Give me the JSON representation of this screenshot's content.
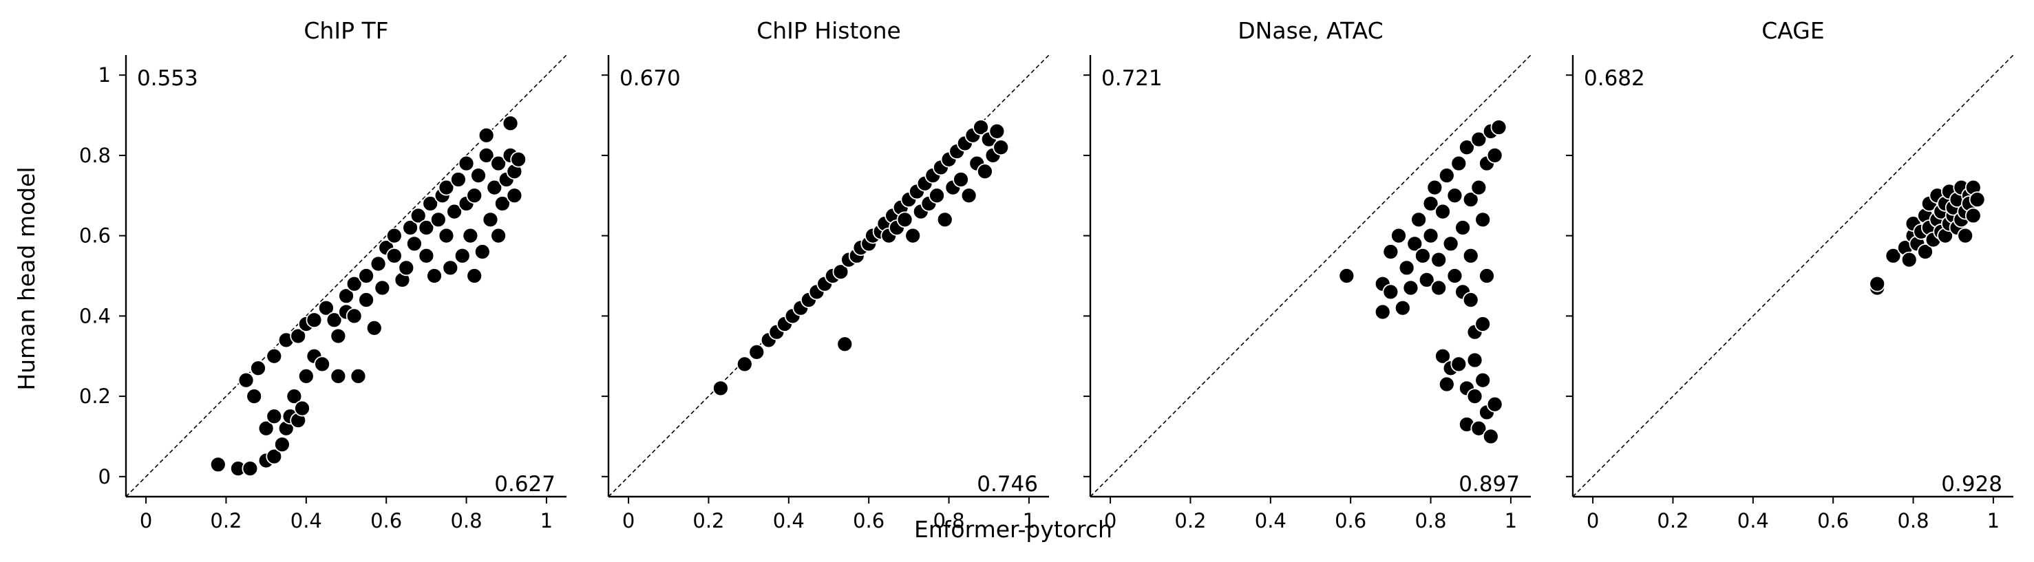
{
  "figure": {
    "xlabel": "Enformer-pytorch",
    "ylabel": "Human head model"
  },
  "chart_data": [
    {
      "type": "scatter",
      "title": "ChIP TF",
      "xlim": [
        -0.05,
        1.05
      ],
      "ylim": [
        -0.05,
        1.05
      ],
      "xticks": [
        "0",
        "0.2",
        "0.4",
        "0.6",
        "0.8",
        "1"
      ],
      "yticks": [
        "0",
        "0.2",
        "0.4",
        "0.6",
        "0.8",
        "1"
      ],
      "reference_line": "y = x",
      "annotations": {
        "top_left": "0.553",
        "bottom_right": "0.627"
      },
      "points": [
        [
          0.18,
          0.03
        ],
        [
          0.23,
          0.02
        ],
        [
          0.26,
          0.02
        ],
        [
          0.3,
          0.04
        ],
        [
          0.32,
          0.05
        ],
        [
          0.25,
          0.24
        ],
        [
          0.27,
          0.2
        ],
        [
          0.28,
          0.27
        ],
        [
          0.3,
          0.12
        ],
        [
          0.32,
          0.3
        ],
        [
          0.32,
          0.15
        ],
        [
          0.34,
          0.08
        ],
        [
          0.35,
          0.12
        ],
        [
          0.36,
          0.15
        ],
        [
          0.38,
          0.14
        ],
        [
          0.35,
          0.34
        ],
        [
          0.38,
          0.35
        ],
        [
          0.37,
          0.2
        ],
        [
          0.39,
          0.17
        ],
        [
          0.4,
          0.25
        ],
        [
          0.4,
          0.38
        ],
        [
          0.42,
          0.39
        ],
        [
          0.42,
          0.3
        ],
        [
          0.44,
          0.28
        ],
        [
          0.45,
          0.42
        ],
        [
          0.47,
          0.39
        ],
        [
          0.48,
          0.25
        ],
        [
          0.48,
          0.35
        ],
        [
          0.5,
          0.41
        ],
        [
          0.5,
          0.45
        ],
        [
          0.52,
          0.48
        ],
        [
          0.53,
          0.25
        ],
        [
          0.52,
          0.4
        ],
        [
          0.55,
          0.44
        ],
        [
          0.55,
          0.5
        ],
        [
          0.57,
          0.37
        ],
        [
          0.58,
          0.53
        ],
        [
          0.59,
          0.47
        ],
        [
          0.6,
          0.57
        ],
        [
          0.62,
          0.55
        ],
        [
          0.62,
          0.6
        ],
        [
          0.64,
          0.49
        ],
        [
          0.65,
          0.52
        ],
        [
          0.66,
          0.62
        ],
        [
          0.67,
          0.58
        ],
        [
          0.68,
          0.65
        ],
        [
          0.7,
          0.55
        ],
        [
          0.7,
          0.62
        ],
        [
          0.71,
          0.68
        ],
        [
          0.72,
          0.5
        ],
        [
          0.73,
          0.64
        ],
        [
          0.74,
          0.7
        ],
        [
          0.75,
          0.6
        ],
        [
          0.75,
          0.72
        ],
        [
          0.76,
          0.52
        ],
        [
          0.77,
          0.66
        ],
        [
          0.78,
          0.74
        ],
        [
          0.79,
          0.55
        ],
        [
          0.8,
          0.68
        ],
        [
          0.8,
          0.78
        ],
        [
          0.81,
          0.6
        ],
        [
          0.82,
          0.7
        ],
        [
          0.82,
          0.5
        ],
        [
          0.83,
          0.75
        ],
        [
          0.84,
          0.56
        ],
        [
          0.85,
          0.8
        ],
        [
          0.85,
          0.85
        ],
        [
          0.86,
          0.64
        ],
        [
          0.87,
          0.72
        ],
        [
          0.88,
          0.6
        ],
        [
          0.88,
          0.78
        ],
        [
          0.89,
          0.68
        ],
        [
          0.9,
          0.74
        ],
        [
          0.91,
          0.88
        ],
        [
          0.91,
          0.8
        ],
        [
          0.92,
          0.7
        ],
        [
          0.92,
          0.76
        ],
        [
          0.93,
          0.79
        ]
      ]
    },
    {
      "type": "scatter",
      "title": "ChIP Histone",
      "xlim": [
        -0.05,
        1.05
      ],
      "ylim": [
        -0.05,
        1.05
      ],
      "xticks": [
        "0",
        "0.2",
        "0.4",
        "0.6",
        "0.8",
        "1"
      ],
      "yticks": [
        "0",
        "0.2",
        "0.4",
        "0.6",
        "0.8",
        "1"
      ],
      "reference_line": "y = x",
      "annotations": {
        "top_left": "0.670",
        "bottom_right": "0.746"
      },
      "points": [
        [
          0.23,
          0.22
        ],
        [
          0.29,
          0.28
        ],
        [
          0.32,
          0.31
        ],
        [
          0.35,
          0.34
        ],
        [
          0.37,
          0.36
        ],
        [
          0.39,
          0.38
        ],
        [
          0.41,
          0.4
        ],
        [
          0.43,
          0.42
        ],
        [
          0.45,
          0.44
        ],
        [
          0.47,
          0.46
        ],
        [
          0.49,
          0.48
        ],
        [
          0.51,
          0.5
        ],
        [
          0.53,
          0.51
        ],
        [
          0.54,
          0.33
        ],
        [
          0.55,
          0.54
        ],
        [
          0.57,
          0.55
        ],
        [
          0.58,
          0.57
        ],
        [
          0.6,
          0.58
        ],
        [
          0.61,
          0.6
        ],
        [
          0.63,
          0.61
        ],
        [
          0.64,
          0.63
        ],
        [
          0.65,
          0.6
        ],
        [
          0.66,
          0.65
        ],
        [
          0.67,
          0.62
        ],
        [
          0.68,
          0.67
        ],
        [
          0.69,
          0.64
        ],
        [
          0.7,
          0.69
        ],
        [
          0.71,
          0.6
        ],
        [
          0.72,
          0.71
        ],
        [
          0.73,
          0.66
        ],
        [
          0.74,
          0.73
        ],
        [
          0.75,
          0.68
        ],
        [
          0.76,
          0.75
        ],
        [
          0.77,
          0.7
        ],
        [
          0.78,
          0.77
        ],
        [
          0.79,
          0.64
        ],
        [
          0.8,
          0.79
        ],
        [
          0.81,
          0.72
        ],
        [
          0.82,
          0.81
        ],
        [
          0.83,
          0.74
        ],
        [
          0.84,
          0.83
        ],
        [
          0.85,
          0.7
        ],
        [
          0.86,
          0.85
        ],
        [
          0.87,
          0.78
        ],
        [
          0.88,
          0.87
        ],
        [
          0.89,
          0.76
        ],
        [
          0.9,
          0.84
        ],
        [
          0.91,
          0.8
        ],
        [
          0.92,
          0.86
        ],
        [
          0.93,
          0.82
        ]
      ]
    },
    {
      "type": "scatter",
      "title": "DNase, ATAC",
      "xlim": [
        -0.05,
        1.05
      ],
      "ylim": [
        -0.05,
        1.05
      ],
      "xticks": [
        "0",
        "0.2",
        "0.4",
        "0.6",
        "0.8",
        "1"
      ],
      "yticks": [
        "0",
        "0.2",
        "0.4",
        "0.6",
        "0.8",
        "1"
      ],
      "reference_line": "y = x",
      "annotations": {
        "top_left": "0.721",
        "bottom_right": "0.897"
      },
      "points": [
        [
          0.59,
          0.5
        ],
        [
          0.68,
          0.48
        ],
        [
          0.68,
          0.41
        ],
        [
          0.7,
          0.46
        ],
        [
          0.73,
          0.42
        ],
        [
          0.7,
          0.56
        ],
        [
          0.72,
          0.6
        ],
        [
          0.74,
          0.52
        ],
        [
          0.75,
          0.47
        ],
        [
          0.76,
          0.58
        ],
        [
          0.77,
          0.64
        ],
        [
          0.78,
          0.55
        ],
        [
          0.79,
          0.49
        ],
        [
          0.8,
          0.68
        ],
        [
          0.8,
          0.6
        ],
        [
          0.81,
          0.72
        ],
        [
          0.82,
          0.54
        ],
        [
          0.82,
          0.47
        ],
        [
          0.83,
          0.3
        ],
        [
          0.83,
          0.66
        ],
        [
          0.84,
          0.23
        ],
        [
          0.84,
          0.75
        ],
        [
          0.85,
          0.27
        ],
        [
          0.85,
          0.58
        ],
        [
          0.86,
          0.7
        ],
        [
          0.86,
          0.5
        ],
        [
          0.87,
          0.28
        ],
        [
          0.87,
          0.78
        ],
        [
          0.88,
          0.62
        ],
        [
          0.88,
          0.46
        ],
        [
          0.89,
          0.22
        ],
        [
          0.89,
          0.82
        ],
        [
          0.89,
          0.13
        ],
        [
          0.9,
          0.69
        ],
        [
          0.9,
          0.55
        ],
        [
          0.9,
          0.44
        ],
        [
          0.91,
          0.36
        ],
        [
          0.91,
          0.2
        ],
        [
          0.91,
          0.29
        ],
        [
          0.92,
          0.84
        ],
        [
          0.92,
          0.72
        ],
        [
          0.92,
          0.12
        ],
        [
          0.93,
          0.64
        ],
        [
          0.93,
          0.38
        ],
        [
          0.93,
          0.24
        ],
        [
          0.94,
          0.78
        ],
        [
          0.94,
          0.5
        ],
        [
          0.94,
          0.16
        ],
        [
          0.95,
          0.86
        ],
        [
          0.95,
          0.1
        ],
        [
          0.96,
          0.18
        ],
        [
          0.96,
          0.8
        ],
        [
          0.97,
          0.87
        ]
      ]
    },
    {
      "type": "scatter",
      "title": "CAGE",
      "xlim": [
        -0.05,
        1.05
      ],
      "ylim": [
        -0.05,
        1.05
      ],
      "xticks": [
        "0",
        "0.2",
        "0.4",
        "0.6",
        "0.8",
        "1"
      ],
      "yticks": [
        "0",
        "0.2",
        "0.4",
        "0.6",
        "0.8",
        "1"
      ],
      "reference_line": "y = x",
      "annotations": {
        "top_left": "0.682",
        "bottom_right": "0.928"
      },
      "points": [
        [
          0.71,
          0.47
        ],
        [
          0.71,
          0.48
        ],
        [
          0.75,
          0.55
        ],
        [
          0.78,
          0.57
        ],
        [
          0.79,
          0.54
        ],
        [
          0.8,
          0.6
        ],
        [
          0.8,
          0.63
        ],
        [
          0.81,
          0.58
        ],
        [
          0.82,
          0.61
        ],
        [
          0.83,
          0.56
        ],
        [
          0.83,
          0.65
        ],
        [
          0.84,
          0.62
        ],
        [
          0.84,
          0.68
        ],
        [
          0.85,
          0.59
        ],
        [
          0.86,
          0.64
        ],
        [
          0.86,
          0.7
        ],
        [
          0.87,
          0.61
        ],
        [
          0.87,
          0.66
        ],
        [
          0.88,
          0.68
        ],
        [
          0.88,
          0.6
        ],
        [
          0.89,
          0.63
        ],
        [
          0.89,
          0.71
        ],
        [
          0.9,
          0.65
        ],
        [
          0.9,
          0.67
        ],
        [
          0.91,
          0.62
        ],
        [
          0.91,
          0.69
        ],
        [
          0.92,
          0.64
        ],
        [
          0.92,
          0.72
        ],
        [
          0.93,
          0.66
        ],
        [
          0.93,
          0.6
        ],
        [
          0.94,
          0.7
        ],
        [
          0.94,
          0.68
        ],
        [
          0.95,
          0.65
        ],
        [
          0.95,
          0.72
        ],
        [
          0.96,
          0.69
        ]
      ]
    }
  ]
}
